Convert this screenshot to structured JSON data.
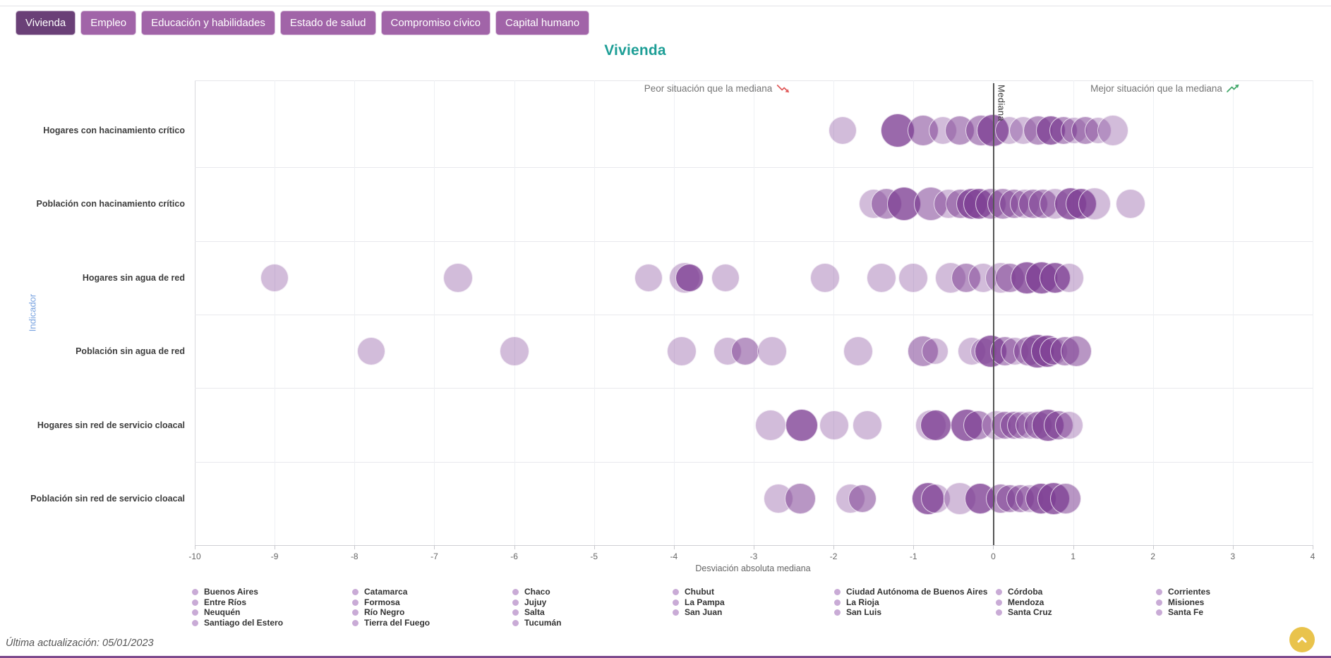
{
  "page": {
    "last_update": "Última actualización: 05/01/2023"
  },
  "title": "Vivienda",
  "tabs": [
    {
      "label": "Vivienda",
      "active": true
    },
    {
      "label": "Empleo",
      "active": false
    },
    {
      "label": "Educación y habilidades",
      "active": false
    },
    {
      "label": "Estado de salud",
      "active": false
    },
    {
      "label": "Compromiso cívico",
      "active": false
    },
    {
      "label": "Capital humano",
      "active": false
    }
  ],
  "annotations": {
    "worse": "Peor situación que la mediana",
    "better": "Mejor situación que la mediana"
  },
  "median_label": "Mediana",
  "axis": {
    "y_title": "Indicador",
    "x_title": "Desviación absoluta mediana"
  },
  "colors": {
    "tab_active": "#6a4077",
    "tab_inactive": "#a164a8",
    "title": "#1d9e96",
    "bubble_base": "#7d3f94",
    "indicator_axis_label": "#79a3e0",
    "worse_arrow": "#e05c5c",
    "better_arrow": "#43a86b",
    "legend_marker": "#c9abd6",
    "median_line": "#555555",
    "bottom_border": "#7d4a8d",
    "scroll_button": "#e9c34c"
  },
  "legend": {
    "columns": [
      [
        "Buenos Aires",
        "Entre Ríos",
        "Neuquén",
        "Santiago del Estero"
      ],
      [
        "Catamarca",
        "Formosa",
        "Río Negro",
        "Tierra del Fuego"
      ],
      [
        "Chaco",
        "Jujuy",
        "Salta",
        "Tucumán"
      ],
      [
        "Chubut",
        "La Pampa",
        "San Juan"
      ],
      [
        "Ciudad Autónoma de Buenos Aires",
        "La Rioja",
        "San Luis"
      ],
      [
        "Córdoba",
        "Mendoza",
        "Santa Cruz"
      ],
      [
        "Corrientes",
        "Misiones",
        "Santa Fe"
      ]
    ]
  },
  "chart_data": {
    "type": "scatter",
    "title": "Vivienda",
    "xlabel": "Desviación absoluta mediana",
    "ylabel": "Indicador",
    "xlim": [
      -10,
      4
    ],
    "x_ticks": [
      -10,
      -9,
      -8,
      -7,
      -6,
      -5,
      -4,
      -3,
      -2,
      -1,
      0,
      1,
      2,
      3,
      4
    ],
    "median_line_x": 0,
    "grid": true,
    "legend_position": "bottom",
    "marker_note": "bubbles are provinces of Argentina (24, unlabeled in plot); shade = overlap/opacity tier",
    "categories": [
      "Hogares con hacinamiento crítico",
      "Población con hacinamiento crítico",
      "Hogares sin agua de red",
      "Población sin agua de red",
      "Hogares sin red de servicio cloacal",
      "Población sin red de servicio cloacal"
    ],
    "rows": [
      {
        "indicator": "Hogares con hacinamiento crítico",
        "points": [
          {
            "x": -1.89,
            "r": 20,
            "shade": "light"
          },
          {
            "x": -1.2,
            "r": 24,
            "shade": "dark"
          },
          {
            "x": -0.88,
            "r": 22,
            "shade": "medium"
          },
          {
            "x": -0.63,
            "r": 20,
            "shade": "light"
          },
          {
            "x": -0.42,
            "r": 21,
            "shade": "medium"
          },
          {
            "x": -0.15,
            "r": 22,
            "shade": "medium"
          },
          {
            "x": 0.0,
            "r": 23,
            "shade": "dark"
          },
          {
            "x": 0.2,
            "r": 20,
            "shade": "light"
          },
          {
            "x": 0.38,
            "r": 20,
            "shade": "light"
          },
          {
            "x": 0.56,
            "r": 21,
            "shade": "medium"
          },
          {
            "x": 0.72,
            "r": 21,
            "shade": "dark"
          },
          {
            "x": 0.88,
            "r": 20,
            "shade": "medium"
          },
          {
            "x": 1.01,
            "r": 19,
            "shade": "light"
          },
          {
            "x": 1.15,
            "r": 20,
            "shade": "medium"
          },
          {
            "x": 1.31,
            "r": 19,
            "shade": "light"
          },
          {
            "x": 1.5,
            "r": 22,
            "shade": "light"
          }
        ]
      },
      {
        "indicator": "Población con hacinamiento crítico",
        "points": [
          {
            "x": -1.5,
            "r": 21,
            "shade": "light"
          },
          {
            "x": -1.34,
            "r": 22,
            "shade": "medium"
          },
          {
            "x": -1.12,
            "r": 24,
            "shade": "dark"
          },
          {
            "x": -0.78,
            "r": 24,
            "shade": "medium"
          },
          {
            "x": -0.56,
            "r": 21,
            "shade": "light"
          },
          {
            "x": -0.41,
            "r": 21,
            "shade": "medium"
          },
          {
            "x": -0.27,
            "r": 22,
            "shade": "dark"
          },
          {
            "x": -0.18,
            "r": 22,
            "shade": "dark"
          },
          {
            "x": -0.03,
            "r": 22,
            "shade": "medium"
          },
          {
            "x": 0.12,
            "r": 22,
            "shade": "medium"
          },
          {
            "x": 0.26,
            "r": 21,
            "shade": "medium"
          },
          {
            "x": 0.39,
            "r": 21,
            "shade": "light"
          },
          {
            "x": 0.5,
            "r": 21,
            "shade": "medium"
          },
          {
            "x": 0.62,
            "r": 21,
            "shade": "medium"
          },
          {
            "x": 0.77,
            "r": 22,
            "shade": "light"
          },
          {
            "x": 0.97,
            "r": 23,
            "shade": "dark"
          },
          {
            "x": 1.1,
            "r": 22,
            "shade": "dark"
          },
          {
            "x": 1.27,
            "r": 23,
            "shade": "light"
          },
          {
            "x": 1.72,
            "r": 21,
            "shade": "light"
          }
        ]
      },
      {
        "indicator": "Hogares sin agua de red",
        "points": [
          {
            "x": -9.0,
            "r": 20,
            "shade": "light"
          },
          {
            "x": -6.7,
            "r": 21,
            "shade": "light"
          },
          {
            "x": -4.32,
            "r": 20,
            "shade": "light"
          },
          {
            "x": -3.87,
            "r": 22,
            "shade": "light"
          },
          {
            "x": -3.8,
            "r": 20,
            "shade": "dark"
          },
          {
            "x": -3.35,
            "r": 20,
            "shade": "light"
          },
          {
            "x": -2.11,
            "r": 21,
            "shade": "light"
          },
          {
            "x": -1.4,
            "r": 21,
            "shade": "light"
          },
          {
            "x": -1.0,
            "r": 21,
            "shade": "light"
          },
          {
            "x": -0.53,
            "r": 22,
            "shade": "light"
          },
          {
            "x": -0.34,
            "r": 21,
            "shade": "medium"
          },
          {
            "x": -0.13,
            "r": 21,
            "shade": "light"
          },
          {
            "x": 0.09,
            "r": 22,
            "shade": "light"
          },
          {
            "x": 0.21,
            "r": 21,
            "shade": "medium"
          },
          {
            "x": 0.42,
            "r": 23,
            "shade": "dark"
          },
          {
            "x": 0.61,
            "r": 23,
            "shade": "dark"
          },
          {
            "x": 0.77,
            "r": 22,
            "shade": "dark"
          },
          {
            "x": 0.95,
            "r": 21,
            "shade": "light"
          }
        ]
      },
      {
        "indicator": "Población sin agua de red",
        "points": [
          {
            "x": -7.79,
            "r": 20,
            "shade": "light"
          },
          {
            "x": -6.0,
            "r": 21,
            "shade": "light"
          },
          {
            "x": -3.9,
            "r": 21,
            "shade": "light"
          },
          {
            "x": -3.33,
            "r": 20,
            "shade": "light"
          },
          {
            "x": -3.11,
            "r": 20,
            "shade": "medium"
          },
          {
            "x": -2.77,
            "r": 21,
            "shade": "light"
          },
          {
            "x": -1.69,
            "r": 21,
            "shade": "light"
          },
          {
            "x": -0.88,
            "r": 22,
            "shade": "medium"
          },
          {
            "x": -0.73,
            "r": 19,
            "shade": "light"
          },
          {
            "x": -0.27,
            "r": 20,
            "shade": "light"
          },
          {
            "x": -0.12,
            "r": 19,
            "shade": "light"
          },
          {
            "x": -0.03,
            "r": 23,
            "shade": "dark"
          },
          {
            "x": 0.15,
            "r": 21,
            "shade": "medium"
          },
          {
            "x": 0.27,
            "r": 20,
            "shade": "light"
          },
          {
            "x": 0.44,
            "r": 21,
            "shade": "medium"
          },
          {
            "x": 0.55,
            "r": 24,
            "shade": "dark"
          },
          {
            "x": 0.68,
            "r": 23,
            "shade": "dark"
          },
          {
            "x": 0.76,
            "r": 20,
            "shade": "light"
          },
          {
            "x": 0.9,
            "r": 21,
            "shade": "medium"
          },
          {
            "x": 1.04,
            "r": 22,
            "shade": "medium"
          }
        ]
      },
      {
        "indicator": "Hogares sin red de servicio cloacal",
        "points": [
          {
            "x": -2.79,
            "r": 22,
            "shade": "light"
          },
          {
            "x": -2.4,
            "r": 23,
            "shade": "dark"
          },
          {
            "x": -1.99,
            "r": 21,
            "shade": "light"
          },
          {
            "x": -1.58,
            "r": 21,
            "shade": "light"
          },
          {
            "x": -0.78,
            "r": 22,
            "shade": "light"
          },
          {
            "x": -0.72,
            "r": 22,
            "shade": "dark"
          },
          {
            "x": -0.33,
            "r": 23,
            "shade": "dark"
          },
          {
            "x": -0.19,
            "r": 21,
            "shade": "medium"
          },
          {
            "x": 0.04,
            "r": 21,
            "shade": "light"
          },
          {
            "x": 0.15,
            "r": 20,
            "shade": "medium"
          },
          {
            "x": 0.26,
            "r": 20,
            "shade": "medium"
          },
          {
            "x": 0.35,
            "r": 20,
            "shade": "light"
          },
          {
            "x": 0.46,
            "r": 20,
            "shade": "light"
          },
          {
            "x": 0.56,
            "r": 20,
            "shade": "medium"
          },
          {
            "x": 0.69,
            "r": 23,
            "shade": "dark"
          },
          {
            "x": 0.82,
            "r": 21,
            "shade": "medium"
          },
          {
            "x": 0.95,
            "r": 20,
            "shade": "light"
          }
        ]
      },
      {
        "indicator": "Población sin red de servicio cloacal",
        "points": [
          {
            "x": -2.69,
            "r": 21,
            "shade": "light"
          },
          {
            "x": -2.42,
            "r": 22,
            "shade": "medium"
          },
          {
            "x": -1.79,
            "r": 21,
            "shade": "light"
          },
          {
            "x": -1.64,
            "r": 20,
            "shade": "medium"
          },
          {
            "x": -0.82,
            "r": 23,
            "shade": "dark"
          },
          {
            "x": -0.72,
            "r": 21,
            "shade": "light"
          },
          {
            "x": -0.42,
            "r": 23,
            "shade": "light"
          },
          {
            "x": -0.16,
            "r": 22,
            "shade": "dark"
          },
          {
            "x": 0.09,
            "r": 21,
            "shade": "medium"
          },
          {
            "x": 0.21,
            "r": 20,
            "shade": "medium"
          },
          {
            "x": 0.34,
            "r": 20,
            "shade": "medium"
          },
          {
            "x": 0.46,
            "r": 20,
            "shade": "light"
          },
          {
            "x": 0.6,
            "r": 22,
            "shade": "dark"
          },
          {
            "x": 0.76,
            "r": 23,
            "shade": "dark"
          },
          {
            "x": 0.91,
            "r": 22,
            "shade": "medium"
          }
        ]
      }
    ]
  }
}
